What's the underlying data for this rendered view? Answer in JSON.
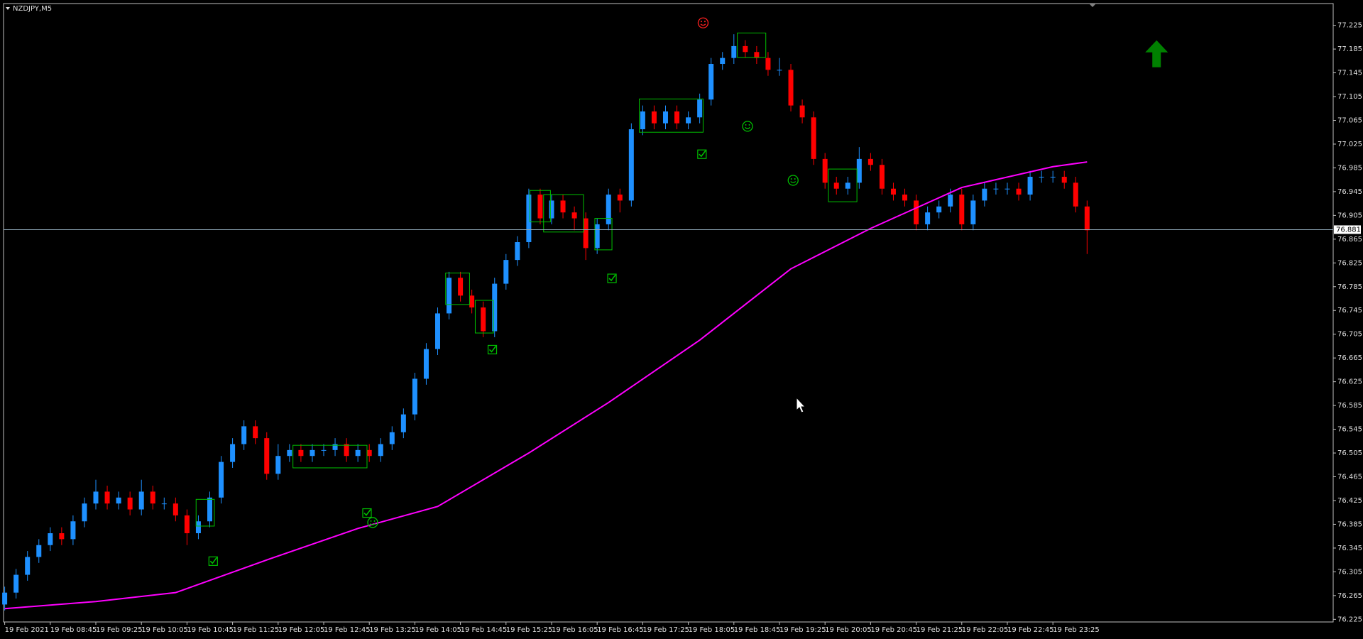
{
  "chart_data": {
    "type": "candlestick",
    "symbol_label": "NZDJPY,M5",
    "bull_color": "#1e90ff",
    "bear_color": "#ff0000",
    "open": [
      76.25,
      76.27,
      76.3,
      76.33,
      76.35,
      76.37,
      76.36,
      76.39,
      76.42,
      76.44,
      76.42,
      76.43,
      76.41,
      76.44,
      76.42,
      76.42,
      76.4,
      76.37,
      76.39,
      76.43,
      76.49,
      76.52,
      76.55,
      76.53,
      76.47,
      76.5,
      76.51,
      76.5,
      76.51,
      76.51,
      76.52,
      76.5,
      76.51,
      76.5,
      76.52,
      76.54,
      76.57,
      76.63,
      76.68,
      76.74,
      76.8,
      76.77,
      76.75,
      76.71,
      76.79,
      76.83,
      76.86,
      76.94,
      76.9,
      76.93,
      76.91,
      76.9,
      76.85,
      76.89,
      76.94,
      76.93,
      77.05,
      77.08,
      77.06,
      77.08,
      77.06,
      77.07,
      77.1,
      77.16,
      77.17,
      77.19,
      77.18,
      77.17,
      77.15,
      77.15,
      77.09,
      77.07,
      77.0,
      76.96,
      76.95,
      76.96,
      77.0,
      76.99,
      76.95,
      76.94,
      76.93,
      76.89,
      76.91,
      76.92,
      76.94,
      76.89,
      76.93,
      76.95,
      76.95,
      76.95,
      76.94,
      76.97,
      76.97,
      76.97,
      76.96,
      76.92
    ],
    "high": [
      76.28,
      76.31,
      76.34,
      76.36,
      76.38,
      76.38,
      76.4,
      76.43,
      76.46,
      76.45,
      76.44,
      76.44,
      76.46,
      76.45,
      76.43,
      76.43,
      76.41,
      76.4,
      76.44,
      76.5,
      76.53,
      76.56,
      76.56,
      76.54,
      76.52,
      76.52,
      76.52,
      76.52,
      76.52,
      76.53,
      76.53,
      76.52,
      76.52,
      76.53,
      76.55,
      76.58,
      76.64,
      76.69,
      76.75,
      76.81,
      76.81,
      76.78,
      76.76,
      76.8,
      76.84,
      76.87,
      76.95,
      76.95,
      76.94,
      76.94,
      76.92,
      76.91,
      76.9,
      76.95,
      76.95,
      77.06,
      77.09,
      77.09,
      77.09,
      77.09,
      77.08,
      77.11,
      77.17,
      77.18,
      77.21,
      77.2,
      77.19,
      77.18,
      77.17,
      77.16,
      77.1,
      77.08,
      77.01,
      76.97,
      76.97,
      77.02,
      77.01,
      77.0,
      76.96,
      76.95,
      76.94,
      76.92,
      76.93,
      76.95,
      76.95,
      76.94,
      76.96,
      76.96,
      76.96,
      76.96,
      76.98,
      76.98,
      76.98,
      76.98,
      76.97,
      76.93
    ],
    "low": [
      76.24,
      76.26,
      76.29,
      76.32,
      76.34,
      76.35,
      76.35,
      76.38,
      76.41,
      76.41,
      76.41,
      76.4,
      76.4,
      76.41,
      76.41,
      76.39,
      76.35,
      76.36,
      76.38,
      76.42,
      76.48,
      76.51,
      76.52,
      76.46,
      76.46,
      76.49,
      76.49,
      76.49,
      76.5,
      76.5,
      76.49,
      76.49,
      76.49,
      76.49,
      76.51,
      76.53,
      76.56,
      76.62,
      76.67,
      76.73,
      76.76,
      76.74,
      76.7,
      76.7,
      76.78,
      76.82,
      76.85,
      76.89,
      76.89,
      76.9,
      76.88,
      76.83,
      76.84,
      76.88,
      76.91,
      76.92,
      77.04,
      77.05,
      77.05,
      77.05,
      77.05,
      77.06,
      77.09,
      77.15,
      77.16,
      77.17,
      77.16,
      77.14,
      77.14,
      77.08,
      77.06,
      76.99,
      76.95,
      76.94,
      76.94,
      76.95,
      76.98,
      76.94,
      76.93,
      76.92,
      76.88,
      76.88,
      76.9,
      76.91,
      76.88,
      76.88,
      76.92,
      76.94,
      76.94,
      76.93,
      76.93,
      76.96,
      76.96,
      76.95,
      76.91,
      76.84
    ],
    "close": [
      76.27,
      76.3,
      76.33,
      76.35,
      76.37,
      76.36,
      76.39,
      76.42,
      76.44,
      76.42,
      76.43,
      76.41,
      76.44,
      76.42,
      76.42,
      76.4,
      76.37,
      76.39,
      76.43,
      76.49,
      76.52,
      76.55,
      76.53,
      76.47,
      76.5,
      76.51,
      76.5,
      76.51,
      76.51,
      76.52,
      76.5,
      76.51,
      76.5,
      76.52,
      76.54,
      76.57,
      76.63,
      76.68,
      76.74,
      76.8,
      76.77,
      76.75,
      76.71,
      76.79,
      76.83,
      76.86,
      76.94,
      76.9,
      76.93,
      76.91,
      76.9,
      76.85,
      76.89,
      76.94,
      76.93,
      77.05,
      77.08,
      77.06,
      77.08,
      77.06,
      77.07,
      77.1,
      77.16,
      77.17,
      77.19,
      77.18,
      77.17,
      77.15,
      77.15,
      77.09,
      77.07,
      77.0,
      76.96,
      76.95,
      76.96,
      77.0,
      76.99,
      76.95,
      76.94,
      76.93,
      76.89,
      76.91,
      76.92,
      76.94,
      76.89,
      76.93,
      76.95,
      76.95,
      76.95,
      76.94,
      76.97,
      76.97,
      76.97,
      76.96,
      76.92,
      76.88
    ],
    "moving_average": {
      "color": "#ff00ff",
      "x": [
        0,
        8,
        15,
        23,
        31,
        38,
        46,
        53,
        61,
        69,
        76,
        84,
        92,
        95
      ],
      "values": [
        76.243,
        76.255,
        76.27,
        76.325,
        76.378,
        76.415,
        76.505,
        76.59,
        76.695,
        76.815,
        76.883,
        76.952,
        76.987,
        76.995
      ]
    },
    "current_price": 76.881,
    "box_color": "#00c000",
    "boxes": [
      {
        "x": [
          16.8,
          18.4
        ],
        "y": [
          76.382,
          76.427
        ]
      },
      {
        "x": [
          25.3,
          31.8
        ],
        "y": [
          76.48,
          76.518
        ]
      },
      {
        "x": [
          38.7,
          40.8
        ],
        "y": [
          76.755,
          76.808
        ]
      },
      {
        "x": [
          41.3,
          42.9
        ],
        "y": [
          76.707,
          76.762
        ]
      },
      {
        "x": [
          46.1,
          47.9
        ],
        "y": [
          76.894,
          76.947
        ]
      },
      {
        "x": [
          47.3,
          50.8
        ],
        "y": [
          76.877,
          76.94
        ]
      },
      {
        "x": [
          51.8,
          53.3
        ],
        "y": [
          76.847,
          76.9
        ]
      },
      {
        "x": [
          55.7,
          61.3
        ],
        "y": [
          77.045,
          77.101
        ]
      },
      {
        "x": [
          64.3,
          66.8
        ],
        "y": [
          77.171,
          77.212
        ]
      },
      {
        "x": [
          72.3,
          74.8
        ],
        "y": [
          76.928,
          76.983
        ]
      }
    ],
    "markers": [
      {
        "shape": "check",
        "color": "#00c000",
        "x": 18.3,
        "y": 76.323
      },
      {
        "shape": "check",
        "color": "#00c000",
        "x": 31.8,
        "y": 76.404
      },
      {
        "shape": "smile",
        "color": "#00c000",
        "x": 32.3,
        "y": 76.388
      },
      {
        "shape": "check",
        "color": "#00c000",
        "x": 42.8,
        "y": 76.679
      },
      {
        "shape": "check",
        "color": "#00c000",
        "x": 53.3,
        "y": 76.799
      },
      {
        "shape": "check",
        "color": "#00c000",
        "x": 61.2,
        "y": 77.008
      },
      {
        "shape": "smile",
        "color": "#ff2020",
        "x": 61.3,
        "y": 77.229
      },
      {
        "shape": "smile",
        "color": "#00c000",
        "x": 65.2,
        "y": 77.055
      },
      {
        "shape": "smile",
        "color": "#00c000",
        "x": 69.2,
        "y": 76.964
      },
      {
        "shape": "arrow",
        "color": "#008000",
        "x": 101.1,
        "y": 77.177
      }
    ],
    "xlim": [
      -0.1,
      116.6
    ],
    "ylim": [
      76.2206,
      77.2616
    ],
    "xticks": [
      {
        "value": 0,
        "label": "19 Feb 2021"
      },
      {
        "value": 4,
        "label": "19 Feb 08:45"
      },
      {
        "value": 8,
        "label": "19 Feb 09:25"
      },
      {
        "value": 12,
        "label": "19 Feb 10:05"
      },
      {
        "value": 16,
        "label": "19 Feb 10:45"
      },
      {
        "value": 20,
        "label": "19 Feb 11:25"
      },
      {
        "value": 24,
        "label": "19 Feb 12:05"
      },
      {
        "value": 28,
        "label": "19 Feb 12:45"
      },
      {
        "value": 32,
        "label": "19 Feb 13:25"
      },
      {
        "value": 36,
        "label": "19 Feb 14:05"
      },
      {
        "value": 40,
        "label": "19 Feb 14:45"
      },
      {
        "value": 44,
        "label": "19 Feb 15:25"
      },
      {
        "value": 48,
        "label": "19 Feb 16:05"
      },
      {
        "value": 52,
        "label": "19 Feb 16:45"
      },
      {
        "value": 56,
        "label": "19 Feb 17:25"
      },
      {
        "value": 60,
        "label": "19 Feb 18:05"
      },
      {
        "value": 64,
        "label": "19 Feb 18:45"
      },
      {
        "value": 68,
        "label": "19 Feb 19:25"
      },
      {
        "value": 72,
        "label": "19 Feb 20:05"
      },
      {
        "value": 76,
        "label": "19 Feb 20:45"
      },
      {
        "value": 80,
        "label": "19 Feb 21:25"
      },
      {
        "value": 84,
        "label": "19 Feb 22:05"
      },
      {
        "value": 88,
        "label": "19 Feb 22:45"
      },
      {
        "value": 92,
        "label": "19 Feb 23:25"
      }
    ],
    "yticks": [
      77.225,
      77.185,
      77.145,
      77.105,
      77.065,
      77.025,
      76.985,
      76.945,
      76.905,
      76.865,
      76.825,
      76.785,
      76.745,
      76.705,
      76.665,
      76.625,
      76.585,
      76.545,
      76.505,
      76.465,
      76.425,
      76.385,
      76.345,
      76.305,
      76.265,
      76.225
    ]
  }
}
